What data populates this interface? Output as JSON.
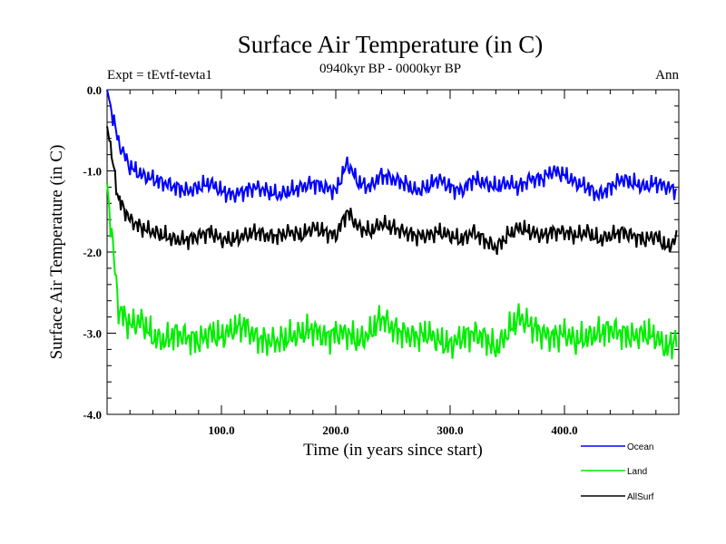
{
  "chart_data": {
    "type": "line",
    "title": "Surface Air Temperature (in C)",
    "subtitle": "0940kyr BP - 0000kyr BP",
    "left_label": "Expt = tEvtf-tevta1",
    "right_label": "Ann",
    "xlabel": "Time (in years since start)",
    "ylabel": "Surface Air Temperature (in C)",
    "xlim": [
      0,
      500
    ],
    "ylim": [
      -4.0,
      0.0
    ],
    "x_ticks": [
      100,
      200,
      300,
      400
    ],
    "x_tick_labels": [
      "100.0",
      "200.0",
      "300.0",
      "400.0"
    ],
    "y_ticks": [
      0,
      -1,
      -2,
      -3,
      -4
    ],
    "y_tick_labels": [
      "0.0",
      "-1.0",
      "-2.0",
      "-3.0",
      "-4.0"
    ],
    "x_step": 10,
    "grid": false,
    "legend_position": "bottom-right",
    "series": [
      {
        "name": "Ocean",
        "color": "#0000ff",
        "values": [
          0.0,
          -0.65,
          -0.95,
          -1.05,
          -1.1,
          -1.15,
          -1.2,
          -1.25,
          -1.2,
          -1.15,
          -1.25,
          -1.3,
          -1.25,
          -1.2,
          -1.25,
          -1.3,
          -1.25,
          -1.2,
          -1.15,
          -1.2,
          -1.25,
          -0.9,
          -1.15,
          -1.2,
          -1.05,
          -1.1,
          -1.15,
          -1.25,
          -1.2,
          -1.1,
          -1.2,
          -1.25,
          -1.1,
          -1.15,
          -1.2,
          -1.15,
          -1.2,
          -1.1,
          -1.1,
          -1.0,
          -1.05,
          -1.15,
          -1.2,
          -1.3,
          -1.2,
          -1.1,
          -1.15,
          -1.2,
          -1.15,
          -1.2,
          -1.25
        ]
      },
      {
        "name": "Land",
        "color": "#00ee00",
        "values": [
          -1.15,
          -2.7,
          -2.9,
          -2.85,
          -3.05,
          -3.1,
          -3.0,
          -3.05,
          -3.1,
          -3.0,
          -3.05,
          -2.95,
          -2.9,
          -3.05,
          -3.1,
          -3.1,
          -3.05,
          -3.0,
          -2.95,
          -3.05,
          -3.0,
          -3.0,
          -3.1,
          -3.0,
          -2.8,
          -2.95,
          -3.0,
          -3.05,
          -3.0,
          -3.1,
          -3.15,
          -3.05,
          -3.0,
          -3.05,
          -3.2,
          -3.0,
          -2.8,
          -2.9,
          -3.0,
          -3.05,
          -3.0,
          -3.1,
          -3.05,
          -3.0,
          -2.95,
          -3.0,
          -3.05,
          -3.0,
          -3.05,
          -3.2,
          -3.0
        ]
      },
      {
        "name": "AllSurf",
        "color": "#000000",
        "values": [
          -0.45,
          -1.35,
          -1.6,
          -1.7,
          -1.75,
          -1.8,
          -1.85,
          -1.85,
          -1.8,
          -1.75,
          -1.85,
          -1.85,
          -1.8,
          -1.75,
          -1.8,
          -1.8,
          -1.75,
          -1.8,
          -1.7,
          -1.75,
          -1.8,
          -1.5,
          -1.7,
          -1.75,
          -1.65,
          -1.7,
          -1.75,
          -1.8,
          -1.8,
          -1.75,
          -1.8,
          -1.85,
          -1.75,
          -1.85,
          -1.95,
          -1.8,
          -1.7,
          -1.75,
          -1.8,
          -1.75,
          -1.75,
          -1.8,
          -1.75,
          -1.85,
          -1.8,
          -1.75,
          -1.8,
          -1.85,
          -1.8,
          -1.95,
          -1.8
        ]
      }
    ]
  }
}
